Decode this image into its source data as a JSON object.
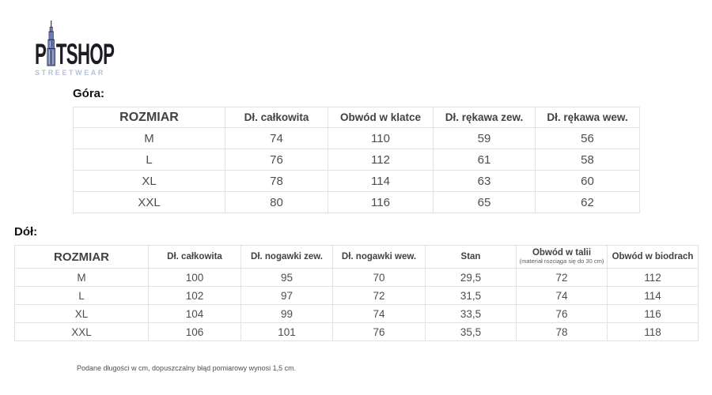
{
  "logo": {
    "brand_left": "P",
    "brand_right": "TSHOP",
    "subtitle": "STREETWEAR"
  },
  "top_section": {
    "heading": "Góra:",
    "table": {
      "headers": [
        "ROZMIAR",
        "Dł. całkowita",
        "Obwód w klatce",
        "Dł. rękawa zew.",
        "Dł. rękawa wew."
      ],
      "rows": [
        [
          "M",
          "74",
          "110",
          "59",
          "56"
        ],
        [
          "L",
          "76",
          "112",
          "61",
          "58"
        ],
        [
          "XL",
          "78",
          "114",
          "63",
          "60"
        ],
        [
          "XXL",
          "80",
          "116",
          "65",
          "62"
        ]
      ]
    }
  },
  "bottom_section": {
    "heading": "Dół:",
    "table": {
      "headers": [
        "ROZMIAR",
        "Dł. całkowita",
        "Dł. nogawki zew.",
        "Dł. nogawki wew.",
        "Stan",
        {
          "label": "Obwód w talii",
          "sub": "(materiał rozciąga się do 30 cm)"
        },
        "Obwód w biodrach"
      ],
      "rows": [
        [
          "M",
          "100",
          "95",
          "70",
          "29,5",
          "72",
          "112"
        ],
        [
          "L",
          "102",
          "97",
          "72",
          "31,5",
          "74",
          "114"
        ],
        [
          "XL",
          "104",
          "99",
          "74",
          "33,5",
          "76",
          "116"
        ],
        [
          "XXL",
          "106",
          "101",
          "76",
          "35,5",
          "78",
          "118"
        ]
      ]
    }
  },
  "footnote": "Podane długości w cm, dopuszczalny błąd pomiarowy wynosi 1,5 cm.",
  "colors": {
    "table_border": "#e2e2e2",
    "cell_text": "#4d4d4d",
    "header_text": "#424242",
    "logo_dark": "#1b1b24",
    "logo_building_blue": "#6a7cb0",
    "logo_subtitle_blue": "#b6c1d7"
  }
}
